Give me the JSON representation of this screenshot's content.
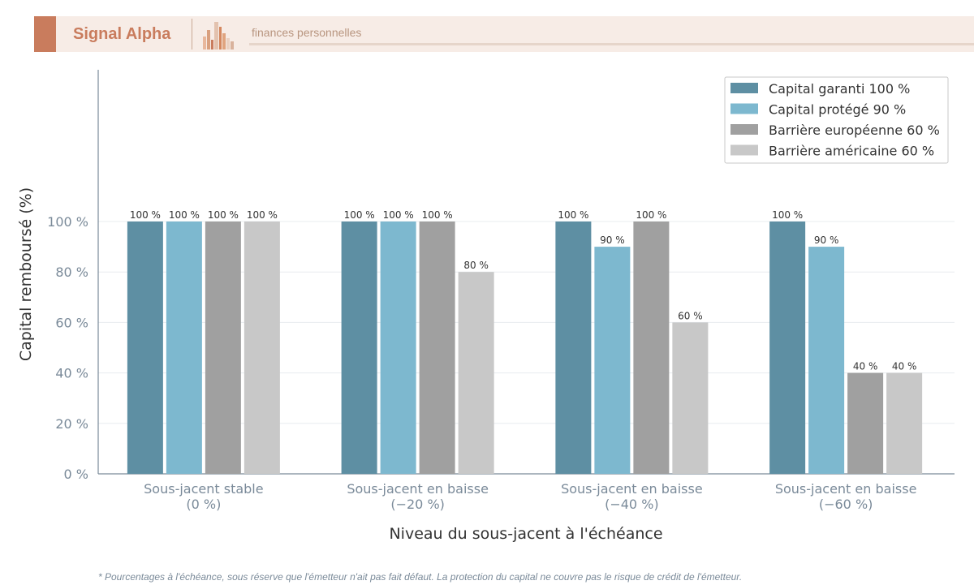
{
  "header": {
    "brand": "Signal Alpha",
    "tagline": "finances personnelles",
    "accent_color": "#c97c5d"
  },
  "footnote": "* Pourcentages à l'échéance, sous réserve que l'émetteur n'ait pas fait défaut. La protection du capital ne couvre pas le risque de crédit de l'émetteur.",
  "chart_data": {
    "type": "bar",
    "title": "",
    "xlabel": "Niveau du sous-jacent à l'échéance",
    "ylabel": "Capital remboursé (%)",
    "ylim": [
      0,
      100
    ],
    "yticks": [
      0,
      20,
      40,
      60,
      80,
      100
    ],
    "ytick_labels": [
      "0 %",
      "20 %",
      "40 %",
      "60 %",
      "80 %",
      "100 %"
    ],
    "grid": true,
    "legend_position": "top-right",
    "categories": [
      [
        "Sous-jacent stable",
        "(0 %)"
      ],
      [
        "Sous-jacent en baisse",
        "(−20 %)"
      ],
      [
        "Sous-jacent en baisse",
        "(−40 %)"
      ],
      [
        "Sous-jacent en baisse",
        "(−60 %)"
      ]
    ],
    "series": [
      {
        "name": "Capital garanti 100 %",
        "color": "#5e8fa3",
        "values": [
          100,
          100,
          100,
          100
        ],
        "labels": [
          "100 %",
          "100 %",
          "100 %",
          "100 %"
        ]
      },
      {
        "name": "Capital protégé 90 %",
        "color": "#7db8cf",
        "values": [
          100,
          100,
          90,
          90
        ],
        "labels": [
          "100 %",
          "100 %",
          "90 %",
          "90 %"
        ]
      },
      {
        "name": "Barrière européenne 60 %",
        "color": "#a0a0a0",
        "values": [
          100,
          100,
          100,
          40
        ],
        "labels": [
          "100 %",
          "100 %",
          "100 %",
          "40 %"
        ]
      },
      {
        "name": "Barrière américaine 60 %",
        "color": "#c8c8c8",
        "values": [
          100,
          80,
          60,
          40
        ],
        "labels": [
          "100 %",
          "80 %",
          "60 %",
          "40 %"
        ]
      }
    ]
  }
}
